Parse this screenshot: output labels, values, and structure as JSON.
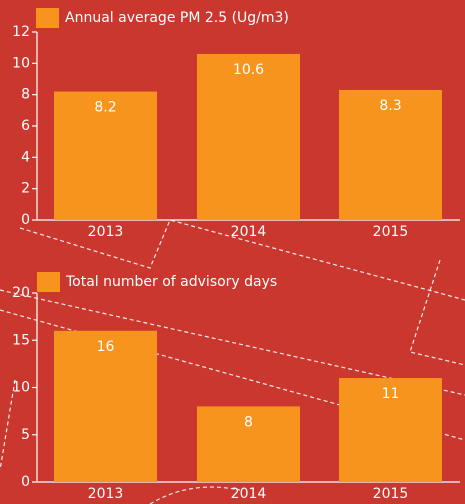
{
  "chart_data": [
    {
      "type": "bar",
      "categories": [
        "2013",
        "2014",
        "2015"
      ],
      "series": [
        {
          "name": "Annual average PM 2.5 (Ug/m3)",
          "color": "#f7941d",
          "values": [
            8.2,
            10.6,
            8.3
          ]
        }
      ],
      "ylim": [
        0,
        12
      ],
      "yticks": [
        0,
        2,
        4,
        6,
        8,
        10,
        12
      ]
    },
    {
      "type": "bar",
      "categories": [
        "2013",
        "2014",
        "2015"
      ],
      "series": [
        {
          "name": "Total number of advisory days",
          "color": "#f7941d",
          "values": [
            16,
            8,
            11
          ]
        }
      ],
      "ylim": [
        0,
        20
      ],
      "yticks": [
        0,
        5,
        10,
        15,
        20
      ]
    }
  ]
}
